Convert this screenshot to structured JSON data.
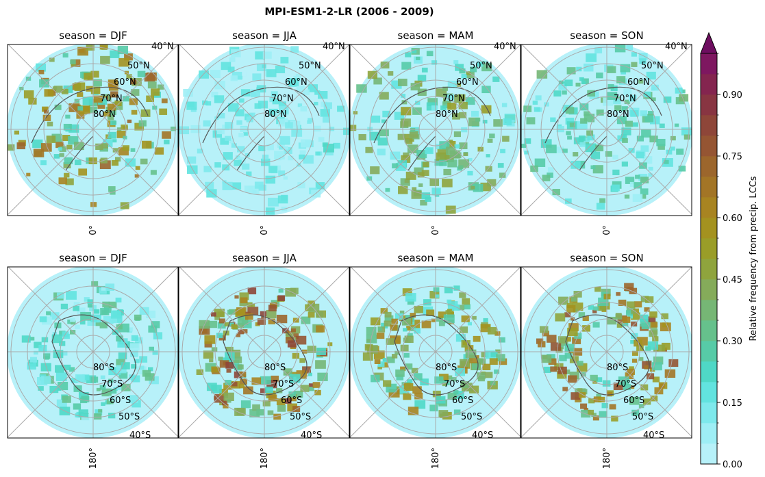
{
  "chart_data": {
    "type": "heatmap",
    "title": "MPI-ESM1-2-LR (2006 - 2009)",
    "projection": "polar stereographic",
    "rows": [
      {
        "hemisphere": "north",
        "lat_labels": [
          "40°N",
          "50°N",
          "60°N",
          "70°N",
          "80°N"
        ],
        "lon_label": "0°",
        "panels": [
          {
            "title": "season = DJF",
            "season": "DJF",
            "mean_level": 0.42
          },
          {
            "title": "season = JJA",
            "season": "JJA",
            "mean_level": 0.12
          },
          {
            "title": "season = MAM",
            "season": "MAM",
            "mean_level": 0.3
          },
          {
            "title": "season = SON",
            "season": "SON",
            "mean_level": 0.22
          }
        ]
      },
      {
        "hemisphere": "south",
        "lat_labels": [
          "80°S",
          "70°S",
          "60°S",
          "50°S",
          "40°S"
        ],
        "lon_label": "180°",
        "panels": [
          {
            "title": "season = DJF",
            "season": "DJF",
            "mean_level": 0.2
          },
          {
            "title": "season = JJA",
            "season": "JJA",
            "mean_level": 0.5
          },
          {
            "title": "season = MAM",
            "season": "MAM",
            "mean_level": 0.38
          },
          {
            "title": "season = SON",
            "season": "SON",
            "mean_level": 0.48
          }
        ]
      }
    ],
    "colorbar": {
      "label": "Relative frequency from precip. LCCs",
      "range": [
        0,
        1
      ],
      "extend": "max",
      "levels": 20,
      "ticks": [
        "0.00",
        "0.15",
        "0.30",
        "0.45",
        "0.60",
        "0.75",
        "0.90"
      ],
      "colors": [
        "#b7f1f9",
        "#9eeef5",
        "#7ee9ec",
        "#62e3df",
        "#4fd8c6",
        "#57cba7",
        "#66c18c",
        "#76b675",
        "#85ab5a",
        "#8fa43d",
        "#9a9d28",
        "#a4921f",
        "#a88421",
        "#a37526",
        "#9c662c",
        "#955533",
        "#8e4639",
        "#883542",
        "#84254f",
        "#7e1760"
      ],
      "extend_color": "#6e0e60"
    }
  }
}
